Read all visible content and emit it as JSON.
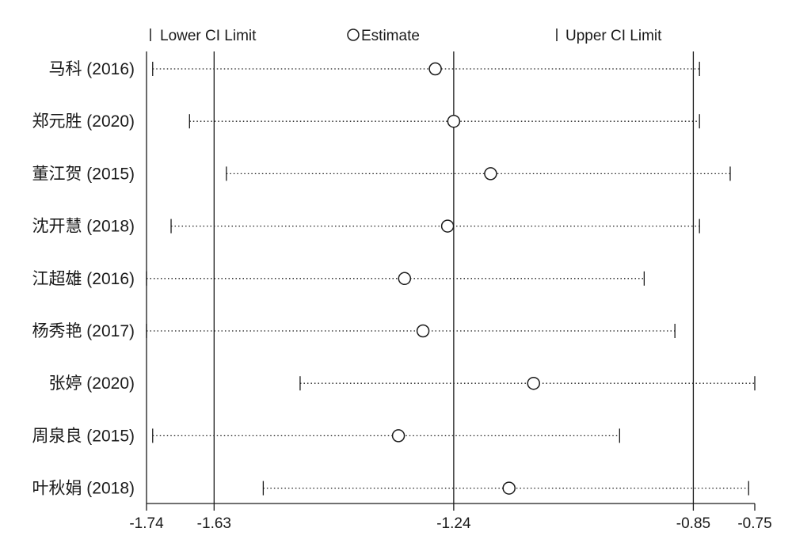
{
  "chart_data": {
    "type": "forest",
    "legend": {
      "lower": "Lower CI Limit",
      "estimate": "Estimate",
      "upper": "Upper CI Limit",
      "placement": "top"
    },
    "xlim": [
      -1.74,
      -0.75
    ],
    "x_ticks": [
      {
        "value": -1.74,
        "label": "-1.74"
      },
      {
        "value": -1.63,
        "label": "-1.63"
      },
      {
        "value": -1.24,
        "label": "-1.24"
      },
      {
        "value": -0.85,
        "label": "-0.85"
      },
      {
        "value": -0.75,
        "label": "-0.75"
      }
    ],
    "reference_lines": [
      -1.63,
      -1.24,
      -0.85
    ],
    "studies": [
      {
        "label": "马科 (2016)",
        "lower": -1.73,
        "estimate": -1.27,
        "upper": -0.84
      },
      {
        "label": "郑元胜 (2020)",
        "lower": -1.67,
        "estimate": -1.24,
        "upper": -0.84
      },
      {
        "label": "董江贺 (2015)",
        "lower": -1.61,
        "estimate": -1.18,
        "upper": -0.79
      },
      {
        "label": "沈开慧 (2018)",
        "lower": -1.7,
        "estimate": -1.25,
        "upper": -0.84
      },
      {
        "label": "江超雄 (2016)",
        "lower": -1.74,
        "estimate": -1.32,
        "upper": -0.93
      },
      {
        "label": "杨秀艳 (2017)",
        "lower": -1.74,
        "estimate": -1.29,
        "upper": -0.88
      },
      {
        "label": "张婷 (2020)",
        "lower": -1.49,
        "estimate": -1.11,
        "upper": -0.75
      },
      {
        "label": "周泉良 (2015)",
        "lower": -1.73,
        "estimate": -1.33,
        "upper": -0.97
      },
      {
        "label": "叶秋娟 (2018)",
        "lower": -1.55,
        "estimate": -1.15,
        "upper": -0.76
      }
    ]
  }
}
